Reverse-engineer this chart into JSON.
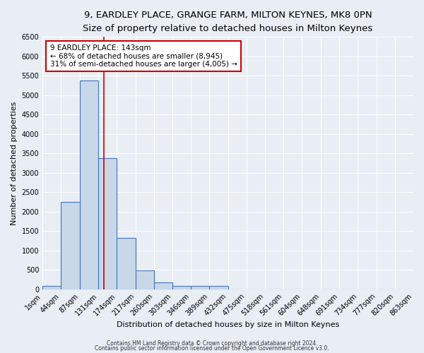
{
  "title": "9, EARDLEY PLACE, GRANGE FARM, MILTON KEYNES, MK8 0PN",
  "subtitle": "Size of property relative to detached houses in Milton Keynes",
  "xlabel": "Distribution of detached houses by size in Milton Keynes",
  "ylabel": "Number of detached properties",
  "bin_edges": [
    1,
    44,
    87,
    131,
    174,
    217,
    260,
    303,
    346,
    389,
    432,
    475,
    518,
    561,
    604,
    648,
    691,
    734,
    777,
    820,
    863
  ],
  "bin_labels": [
    "1sqm",
    "44sqm",
    "87sqm",
    "131sqm",
    "174sqm",
    "217sqm",
    "260sqm",
    "303sqm",
    "346sqm",
    "389sqm",
    "432sqm",
    "475sqm",
    "518sqm",
    "561sqm",
    "604sqm",
    "648sqm",
    "691sqm",
    "734sqm",
    "777sqm",
    "820sqm",
    "863sqm"
  ],
  "bar_heights": [
    75,
    2250,
    5375,
    3375,
    1325,
    475,
    175,
    75,
    75,
    75,
    0,
    0,
    0,
    0,
    0,
    0,
    0,
    0,
    0,
    0
  ],
  "bar_color": "#c8d8e8",
  "bar_edge_color": "#4472c4",
  "vline_x": 143,
  "vline_color": "#cc0000",
  "ylim": [
    0,
    6500
  ],
  "annotation_text": "9 EARDLEY PLACE: 143sqm\n← 68% of detached houses are smaller (8,945)\n31% of semi-detached houses are larger (4,005) →",
  "annotation_box_color": "#ffffff",
  "annotation_box_edge_color": "#cc0000",
  "footnote1": "Contains HM Land Registry data © Crown copyright and database right 2024.",
  "footnote2": "Contains public sector information licensed under the Open Government Licence v3.0.",
  "background_color": "#e8eef4",
  "grid_color": "#ffffff",
  "title_fontsize": 9.5,
  "subtitle_fontsize": 8.5,
  "tick_labelsize": 7,
  "axis_labelsize": 8
}
